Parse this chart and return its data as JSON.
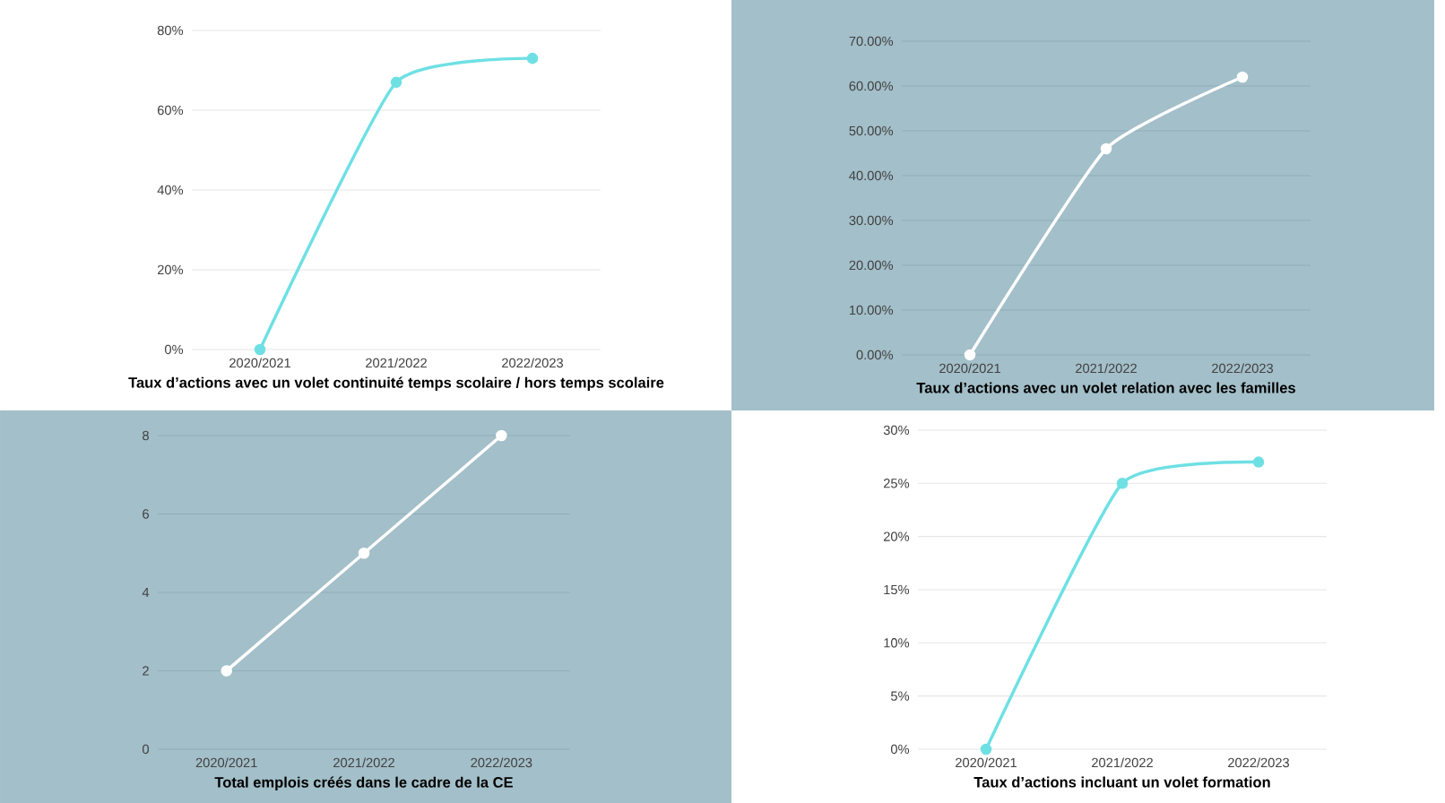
{
  "chart_data": [
    {
      "type": "line",
      "xlabel": "Taux d’actions avec un volet continuité temps scolaire / hors temps scolaire",
      "categories": [
        "2020/2021",
        "2021/2022",
        "2022/2023"
      ],
      "series": [
        {
          "color": "#6ee0e4",
          "values": [
            0,
            67,
            73
          ]
        }
      ],
      "ylim": [
        0,
        80
      ],
      "yticks": [
        {
          "value": 0,
          "label": "0%"
        },
        {
          "value": 20,
          "label": "20%"
        },
        {
          "value": 40,
          "label": "40%"
        },
        {
          "value": 60,
          "label": "60%"
        },
        {
          "value": 80,
          "label": "80%"
        }
      ],
      "grid": "y",
      "marker": "circle"
    },
    {
      "type": "line",
      "xlabel": "Taux d’actions avec un volet relation avec les familles",
      "categories": [
        "2020/2021",
        "2021/2022",
        "2022/2023"
      ],
      "series": [
        {
          "color": "#ffffff",
          "values": [
            0,
            46,
            62
          ]
        }
      ],
      "ylim": [
        0,
        70
      ],
      "yticks": [
        {
          "value": 0,
          "label": "0.00%"
        },
        {
          "value": 10,
          "label": "10.00%"
        },
        {
          "value": 20,
          "label": "20.00%"
        },
        {
          "value": 30,
          "label": "30.00%"
        },
        {
          "value": 40,
          "label": "40.00%"
        },
        {
          "value": 50,
          "label": "50.00%"
        },
        {
          "value": 60,
          "label": "60.00%"
        },
        {
          "value": 70,
          "label": "70.00%"
        }
      ],
      "grid": "y",
      "marker": "circle"
    },
    {
      "type": "line",
      "xlabel": "Total emplois créés dans le cadre de la CE",
      "categories": [
        "2020/2021",
        "2021/2022",
        "2022/2023"
      ],
      "series": [
        {
          "color": "#ffffff",
          "values": [
            2,
            5,
            8
          ]
        }
      ],
      "ylim": [
        0,
        8
      ],
      "yticks": [
        0,
        2,
        4,
        6,
        8
      ],
      "grid": "y",
      "marker": "circle"
    },
    {
      "type": "line",
      "xlabel": "Taux d’actions incluant un volet formation",
      "categories": [
        "2020/2021",
        "2021/2022",
        "2022/2023"
      ],
      "series": [
        {
          "color": "#6ee0e4",
          "values": [
            0,
            25,
            27
          ]
        }
      ],
      "ylim": [
        0,
        30
      ],
      "yticks": [
        {
          "value": 0,
          "label": "0%"
        },
        {
          "value": 5,
          "label": "5%"
        },
        {
          "value": 10,
          "label": "10%"
        },
        {
          "value": 15,
          "label": "15%"
        },
        {
          "value": 20,
          "label": "20%"
        },
        {
          "value": 25,
          "label": "25%"
        },
        {
          "value": 30,
          "label": "30%"
        }
      ],
      "grid": "y",
      "marker": "circle"
    }
  ]
}
